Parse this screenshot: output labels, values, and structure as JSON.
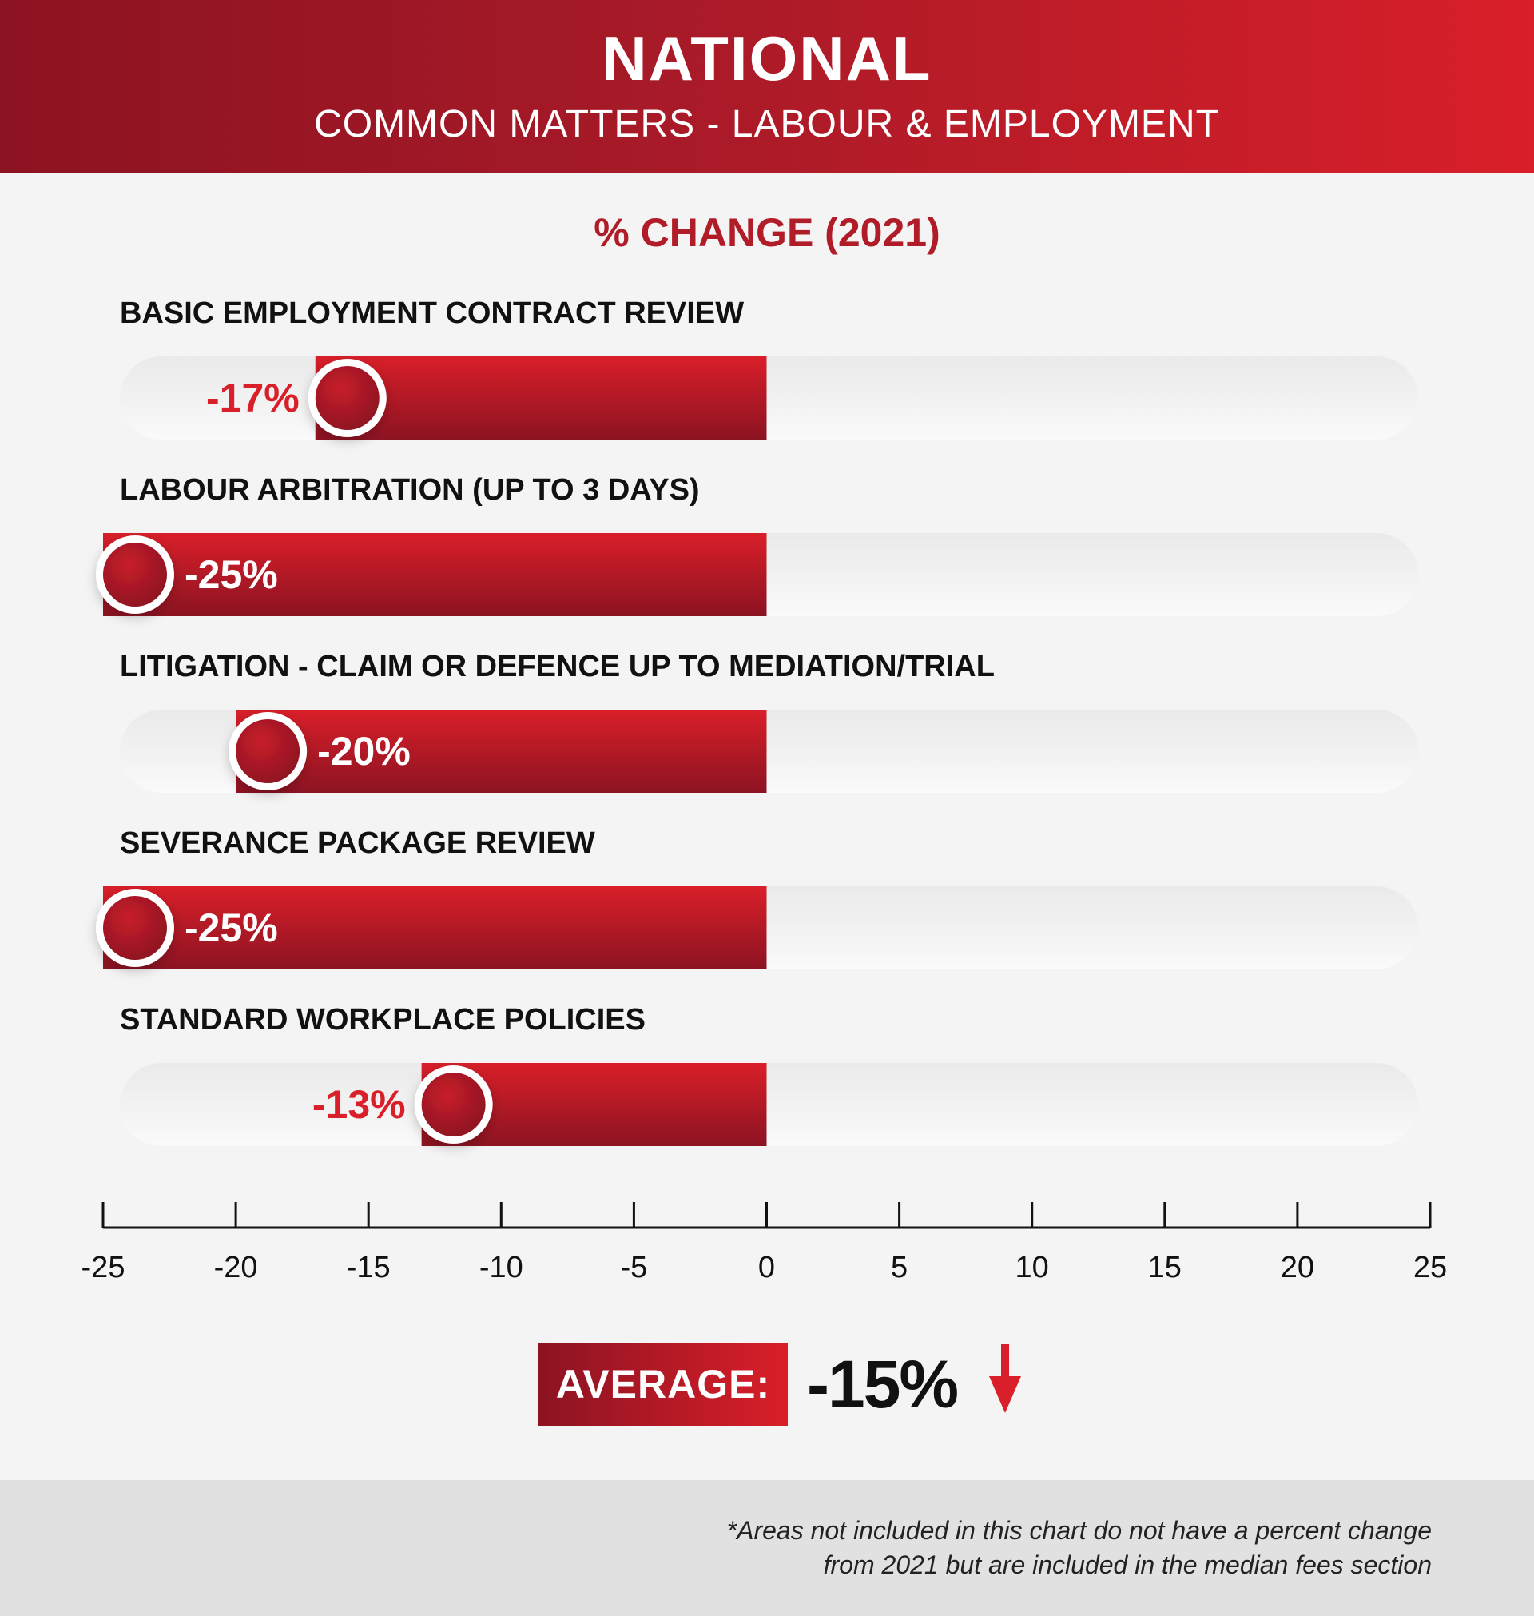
{
  "header": {
    "title": "NATIONAL",
    "subtitle": "COMMON MATTERS - LABOUR & EMPLOYMENT"
  },
  "chart_data": {
    "type": "bar",
    "title": "% CHANGE (2021)",
    "orientation": "horizontal",
    "categories": [
      "BASIC EMPLOYMENT CONTRACT REVIEW",
      "LABOUR ARBITRATION (UP TO 3 DAYS)",
      "LITIGATION - CLAIM OR DEFENCE UP TO MEDIATION/TRIAL",
      "SEVERANCE PACKAGE REVIEW",
      "STANDARD WORKPLACE POLICIES"
    ],
    "values": [
      -17,
      -25,
      -20,
      -25,
      -13
    ],
    "data_labels": [
      "-17%",
      "-25%",
      "-20%",
      "-25%",
      "-13%"
    ],
    "xlim": [
      -25,
      25
    ],
    "xticks": [
      -25,
      -20,
      -15,
      -10,
      -5,
      0,
      5,
      10,
      15,
      20,
      25
    ],
    "xtick_labels": [
      "-25",
      "-20",
      "-15",
      "-10",
      "-5",
      "0",
      "5",
      "10",
      "15",
      "20",
      "25"
    ],
    "grid": false,
    "legend": "none",
    "colors": {
      "bar_dark": "#8c1322",
      "bar_light": "#d91f29",
      "label_red": "#d91f29",
      "track": "#f0f0f0"
    }
  },
  "average": {
    "label": "AVERAGE:",
    "value": "-15%",
    "icon": "down-arrow-icon",
    "color": "#d91f29"
  },
  "footnote": {
    "line1": "*Areas not included in this chart do not have a percent change",
    "line2": "from 2021 but are included in the median fees section"
  }
}
